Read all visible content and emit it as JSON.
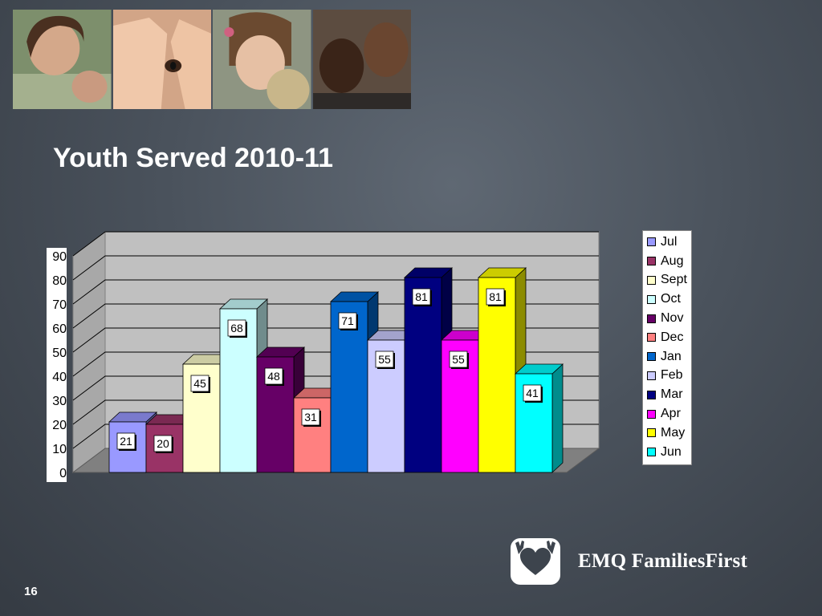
{
  "slide": {
    "title": "Youth Served 2010-11",
    "page_number": "16",
    "logo_text": "EMQ FamiliesFirst"
  },
  "photos": [
    {
      "name": "girl-with-baby-photo",
      "tone": "#8a9a78"
    },
    {
      "name": "child-hands-over-face-photo",
      "tone": "#c69a7e"
    },
    {
      "name": "girl-with-teddy-bear-photo",
      "tone": "#9aa08a"
    },
    {
      "name": "two-boys-photo",
      "tone": "#6f5a4a"
    }
  ],
  "chart_data": {
    "type": "bar",
    "title": "",
    "xlabel": "",
    "ylabel": "",
    "ylim": [
      0,
      90
    ],
    "yticks": [
      0,
      10,
      20,
      30,
      40,
      50,
      60,
      70,
      80,
      90
    ],
    "grid": true,
    "legend_position": "right",
    "categories": [
      "Jul",
      "Aug",
      "Sept",
      "Oct",
      "Nov",
      "Dec",
      "Jan",
      "Feb",
      "Mar",
      "Apr",
      "May",
      "Jun"
    ],
    "values": [
      21,
      20,
      45,
      68,
      48,
      31,
      71,
      55,
      81,
      55,
      81,
      41
    ],
    "colors": [
      "#9999ff",
      "#993366",
      "#ffffcc",
      "#ccffff",
      "#660066",
      "#ff8080",
      "#0066cc",
      "#ccccff",
      "#000080",
      "#ff00ff",
      "#ffff00",
      "#00ffff"
    ]
  }
}
